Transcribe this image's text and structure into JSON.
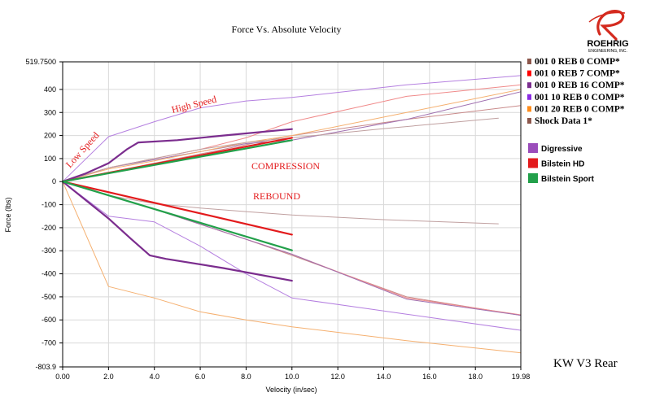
{
  "chart_data": {
    "type": "line",
    "title": "Force Vs. Absolute Velocity",
    "xlabel": "Velocity (in/sec)",
    "ylabel": "Force (lbs)",
    "xlim": [
      0,
      19.98
    ],
    "ylim": [
      -803.9,
      519.75
    ],
    "x_ticks": [
      0,
      2,
      4,
      6,
      8,
      10,
      12,
      14,
      16,
      18,
      19.98
    ],
    "x_tick_labels": [
      "0.00",
      "2.0",
      "4.0",
      "6.0",
      "8.0",
      "10.0",
      "12.0",
      "14.0",
      "16.0",
      "18.0",
      "19.98"
    ],
    "y_ticks": [
      519.75,
      400,
      300,
      200,
      100,
      0,
      -100,
      -200,
      -300,
      -400,
      -500,
      -600,
      -700,
      -803.9
    ],
    "y_tick_labels": [
      "519.7500",
      "400",
      "300",
      "200",
      "100",
      "0",
      "-100",
      "-200",
      "-300",
      "-400",
      "-500",
      "-600",
      "-700",
      "-803.9"
    ],
    "grid": true,
    "annotations": [
      {
        "text": "Low Speed",
        "color": "#e31a1c"
      },
      {
        "text": "High Speed",
        "color": "#e31a1c"
      },
      {
        "text": "COMPRESSION",
        "color": "#e31a1c"
      },
      {
        "text": "REBOUND",
        "color": "#e31a1c"
      }
    ],
    "legend": [
      {
        "name": "001 0 REB 0 COMP*",
        "color": "#8c564b"
      },
      {
        "name": "001 0 REB 7 COMP*",
        "color": "#ff0000"
      },
      {
        "name": "001 0 REB 16 COMP*",
        "color": "#7b2d8e"
      },
      {
        "name": "001 10 REB 0 COMP*",
        "color": "#8a2be2"
      },
      {
        "name": "001 20 REB 0 COMP*",
        "color": "#ff8c1a"
      },
      {
        "name": "Shock Data 1*",
        "color": "#8c564b"
      }
    ],
    "legend2": [
      {
        "name": "Digressive",
        "color": "#9b4dbb"
      },
      {
        "name": "Bilstein HD",
        "color": "#e31a1c"
      },
      {
        "name": "Bilstein Sport",
        "color": "#22a04a"
      }
    ],
    "series": [
      {
        "name": "001 0 REB 0 COMP*",
        "color": "#c98a8a",
        "width": 1,
        "x": [
          0,
          2,
          4,
          6,
          8,
          10,
          15,
          19.98
        ],
        "y": [
          0,
          40,
          80,
          120,
          160,
          200,
          270,
          330
        ]
      },
      {
        "name": "001 0 REB 0 COMP*",
        "color": "#c98a8a",
        "width": 1,
        "x": [
          0,
          2,
          4,
          6,
          8,
          10,
          15,
          19.98
        ],
        "y": [
          0,
          -60,
          -120,
          -185,
          -250,
          -320,
          -500,
          -580
        ]
      },
      {
        "name": "001 0 REB 7 COMP*",
        "color": "#f08a8a",
        "width": 1,
        "x": [
          0,
          2,
          4,
          6,
          8,
          10,
          15,
          19.98
        ],
        "y": [
          0,
          60,
          100,
          140,
          190,
          260,
          370,
          420
        ]
      },
      {
        "name": "001 0 REB 7 COMP*",
        "color": "#f08a8a",
        "width": 1,
        "x": [
          0,
          2,
          4,
          6,
          8,
          10,
          15,
          19.98
        ],
        "y": [
          0,
          -60,
          -120,
          -185,
          -250,
          -315,
          -505,
          -578
        ]
      },
      {
        "name": "001 0 REB 16 COMP*",
        "color": "#a070b0",
        "width": 1,
        "x": [
          0,
          2,
          4,
          6,
          8,
          10,
          15,
          19.98
        ],
        "y": [
          0,
          60,
          95,
          130,
          165,
          180,
          270,
          390
        ]
      },
      {
        "name": "001 0 REB 16 COMP*",
        "color": "#a070b0",
        "width": 1,
        "x": [
          0,
          2,
          4,
          6,
          8,
          10,
          15,
          19.98
        ],
        "y": [
          0,
          -60,
          -120,
          -185,
          -250,
          -315,
          -510,
          -580
        ]
      },
      {
        "name": "001 10 REB 0 COMP*",
        "color": "#b580e0",
        "width": 1,
        "x": [
          0,
          2,
          4,
          6,
          8,
          10,
          15,
          19.98
        ],
        "y": [
          0,
          195,
          260,
          320,
          350,
          365,
          420,
          460
        ]
      },
      {
        "name": "001 10 REB 0 COMP*",
        "color": "#b580e0",
        "width": 1,
        "x": [
          0,
          2,
          4,
          6,
          8,
          10,
          15,
          19.98
        ],
        "y": [
          0,
          -150,
          -175,
          -280,
          -400,
          -505,
          -575,
          -645
        ]
      },
      {
        "name": "001 20 REB 0 COMP*",
        "color": "#f5b070",
        "width": 1,
        "x": [
          0,
          2,
          4,
          6,
          8,
          10,
          15,
          19.98
        ],
        "y": [
          0,
          55,
          90,
          130,
          170,
          200,
          300,
          400
        ]
      },
      {
        "name": "001 20 REB 0 COMP*",
        "color": "#f5b070",
        "width": 1,
        "x": [
          0,
          2,
          4,
          6,
          8,
          10,
          15,
          19.98
        ],
        "y": [
          0,
          -455,
          -505,
          -565,
          -600,
          -630,
          -690,
          -743
        ]
      },
      {
        "name": "Shock Data 1*",
        "color": "#c0a0a0",
        "width": 1,
        "x": [
          0,
          2,
          4,
          6,
          8,
          10,
          14,
          19
        ],
        "y": [
          0,
          60,
          100,
          140,
          170,
          190,
          230,
          275
        ]
      },
      {
        "name": "Shock Data 1*",
        "color": "#c0a0a0",
        "width": 1,
        "x": [
          0,
          2,
          4,
          6,
          8,
          10,
          14,
          19
        ],
        "y": [
          0,
          -60,
          -95,
          -115,
          -130,
          -145,
          -165,
          -183
        ]
      },
      {
        "name": "Digressive",
        "color": "#7b2d8e",
        "width": 2.2,
        "x": [
          0,
          1,
          2,
          2.8,
          3.3,
          5,
          7,
          10
        ],
        "y": [
          0,
          35,
          80,
          140,
          170,
          180,
          200,
          228
        ]
      },
      {
        "name": "Digressive",
        "color": "#7b2d8e",
        "width": 2.2,
        "x": [
          0,
          2,
          3,
          3.8,
          4.5,
          7,
          10
        ],
        "y": [
          0,
          -160,
          -250,
          -320,
          -335,
          -375,
          -430
        ]
      },
      {
        "name": "Bilstein HD",
        "color": "#e31a1c",
        "width": 2.2,
        "x": [
          0,
          10
        ],
        "y": [
          0,
          190
        ]
      },
      {
        "name": "Bilstein HD",
        "color": "#e31a1c",
        "width": 2.2,
        "x": [
          0,
          10
        ],
        "y": [
          0,
          -230
        ]
      },
      {
        "name": "Bilstein Sport",
        "color": "#22a04a",
        "width": 2.2,
        "x": [
          0,
          10
        ],
        "y": [
          0,
          180
        ]
      },
      {
        "name": "Bilstein Sport",
        "color": "#22a04a",
        "width": 2.2,
        "x": [
          0,
          10
        ],
        "y": [
          0,
          -298
        ]
      }
    ]
  },
  "footer_label": "KW V3 Rear",
  "logo": {
    "name": "ROEHRIG",
    "sub": "ENGINEERING, INC."
  }
}
